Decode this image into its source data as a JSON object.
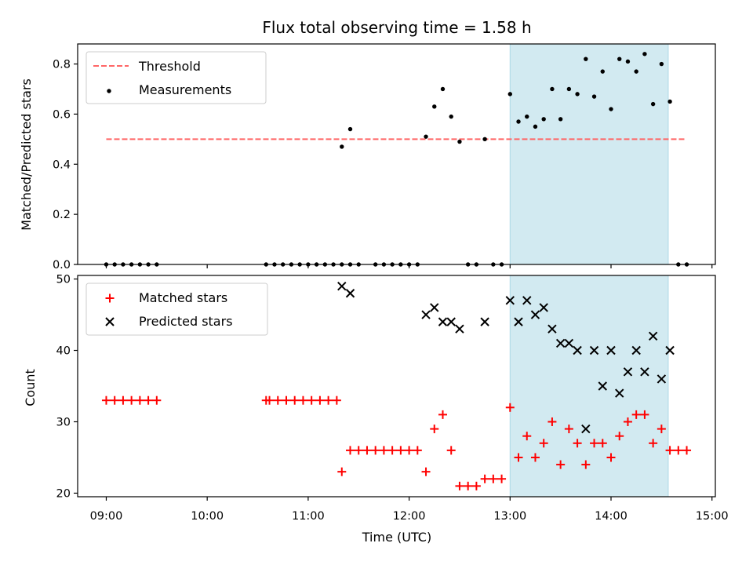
{
  "figure": {
    "title": "Flux total observing time = 1.58 h"
  },
  "chart_data": [
    {
      "type": "scatter",
      "panel": "top",
      "xlabel": "",
      "ylabel": "Matched/Predicted stars",
      "xlim": [
        "08:43",
        "15:02"
      ],
      "ylim": [
        0.0,
        0.88
      ],
      "y_ticks": [
        0.0,
        0.2,
        0.4,
        0.6,
        0.8
      ],
      "y_tick_labels": [
        "0.0",
        "0.2",
        "0.4",
        "0.6",
        "0.8"
      ],
      "legend_position": "upper left",
      "grid": false,
      "shaded_span": {
        "start": "13:00",
        "end": "14:34",
        "color": "#add8e6"
      },
      "threshold": {
        "name": "Threshold",
        "y": 0.5,
        "x_start": "09:00",
        "x_end": "14:44",
        "color": "#ff6666",
        "style": "dashed"
      },
      "series": [
        {
          "name": "Measurements",
          "color": "#000000",
          "marker": "dot",
          "x": [
            "09:00",
            "09:05",
            "09:10",
            "09:15",
            "09:20",
            "09:25",
            "09:30",
            "10:35",
            "10:40",
            "10:45",
            "10:50",
            "10:55",
            "11:00",
            "11:05",
            "11:10",
            "11:15",
            "11:20",
            "11:25",
            "11:30",
            "11:40",
            "11:45",
            "11:50",
            "11:55",
            "12:00",
            "12:05",
            "12:10",
            "12:15",
            "12:20",
            "12:25",
            "12:30",
            "12:35",
            "12:40",
            "12:45",
            "12:50",
            "12:55",
            "13:00",
            "13:05",
            "13:10",
            "13:15",
            "13:20",
            "13:25",
            "13:30",
            "13:35",
            "13:40",
            "13:45",
            "13:50",
            "13:55",
            "14:00",
            "14:05",
            "14:10",
            "14:15",
            "14:20",
            "14:25",
            "14:30",
            "14:35",
            "14:40",
            "14:45",
            "11:20",
            "11:25"
          ],
          "y": [
            0,
            0,
            0,
            0,
            0,
            0,
            0,
            0,
            0,
            0,
            0,
            0,
            0,
            0,
            0,
            0,
            0,
            0,
            0,
            0,
            0,
            0,
            0,
            0,
            0,
            0.51,
            0.63,
            0.7,
            0.59,
            0.49,
            0,
            0,
            0.5,
            0,
            0,
            0.68,
            0.57,
            0.59,
            0.55,
            0.58,
            0.7,
            0.58,
            0.7,
            0.68,
            0.82,
            0.67,
            0.77,
            0.62,
            0.82,
            0.81,
            0.77,
            0.84,
            0.64,
            0.8,
            0.65,
            0,
            0,
            0.47,
            0.54
          ]
        }
      ]
    },
    {
      "type": "scatter",
      "panel": "bottom",
      "xlabel": "Time (UTC)",
      "ylabel": "Count",
      "xlim": [
        "08:43",
        "15:02"
      ],
      "ylim": [
        19.5,
        50.5
      ],
      "x_ticks": [
        "09:00",
        "10:00",
        "11:00",
        "12:00",
        "13:00",
        "14:00",
        "15:00"
      ],
      "y_ticks": [
        20,
        30,
        40,
        50
      ],
      "y_tick_labels": [
        "20",
        "30",
        "40",
        "50"
      ],
      "legend_position": "upper left",
      "grid": false,
      "shaded_span": {
        "start": "13:00",
        "end": "14:34",
        "color": "#add8e6"
      },
      "series": [
        {
          "name": "Matched stars",
          "color": "#ff0000",
          "marker": "plus",
          "x": [
            "09:00",
            "09:05",
            "09:10",
            "09:15",
            "09:20",
            "09:25",
            "09:30",
            "10:35",
            "10:37",
            "10:42",
            "10:47",
            "10:52",
            "10:57",
            "11:02",
            "11:07",
            "11:12",
            "11:17",
            "11:20",
            "11:25",
            "11:30",
            "11:35",
            "11:40",
            "11:45",
            "11:50",
            "11:55",
            "12:00",
            "12:05",
            "12:10",
            "12:15",
            "12:20",
            "12:25",
            "12:30",
            "12:35",
            "12:40",
            "12:45",
            "12:50",
            "12:55",
            "13:00",
            "13:05",
            "13:10",
            "13:15",
            "13:20",
            "13:25",
            "13:30",
            "13:35",
            "13:40",
            "13:45",
            "13:50",
            "13:55",
            "14:00",
            "14:05",
            "14:10",
            "14:15",
            "14:20",
            "14:25",
            "14:30",
            "14:35",
            "14:40",
            "14:45"
          ],
          "y": [
            33,
            33,
            33,
            33,
            33,
            33,
            33,
            33,
            33,
            33,
            33,
            33,
            33,
            33,
            33,
            33,
            33,
            23,
            26,
            26,
            26,
            26,
            26,
            26,
            26,
            26,
            26,
            23,
            29,
            31,
            26,
            21,
            21,
            21,
            22,
            22,
            22,
            32,
            25,
            28,
            25,
            27,
            30,
            24,
            29,
            27,
            24,
            27,
            27,
            25,
            28,
            30,
            31,
            31,
            27,
            29,
            26,
            26,
            26
          ]
        },
        {
          "name": "Predicted stars",
          "color": "#000000",
          "marker": "x",
          "x": [
            "11:20",
            "11:25",
            "12:10",
            "12:15",
            "12:20",
            "12:25",
            "12:30",
            "12:45",
            "13:00",
            "13:05",
            "13:10",
            "13:15",
            "13:20",
            "13:25",
            "13:30",
            "13:35",
            "13:40",
            "13:45",
            "13:50",
            "13:55",
            "14:00",
            "14:05",
            "14:10",
            "14:15",
            "14:20",
            "14:25",
            "14:30",
            "14:35"
          ],
          "y": [
            49,
            48,
            45,
            46,
            44,
            44,
            43,
            44,
            47,
            44,
            47,
            45,
            46,
            43,
            41,
            41,
            40,
            29,
            40,
            35,
            40,
            34,
            37,
            40,
            37,
            42,
            36,
            40
          ]
        }
      ]
    }
  ]
}
